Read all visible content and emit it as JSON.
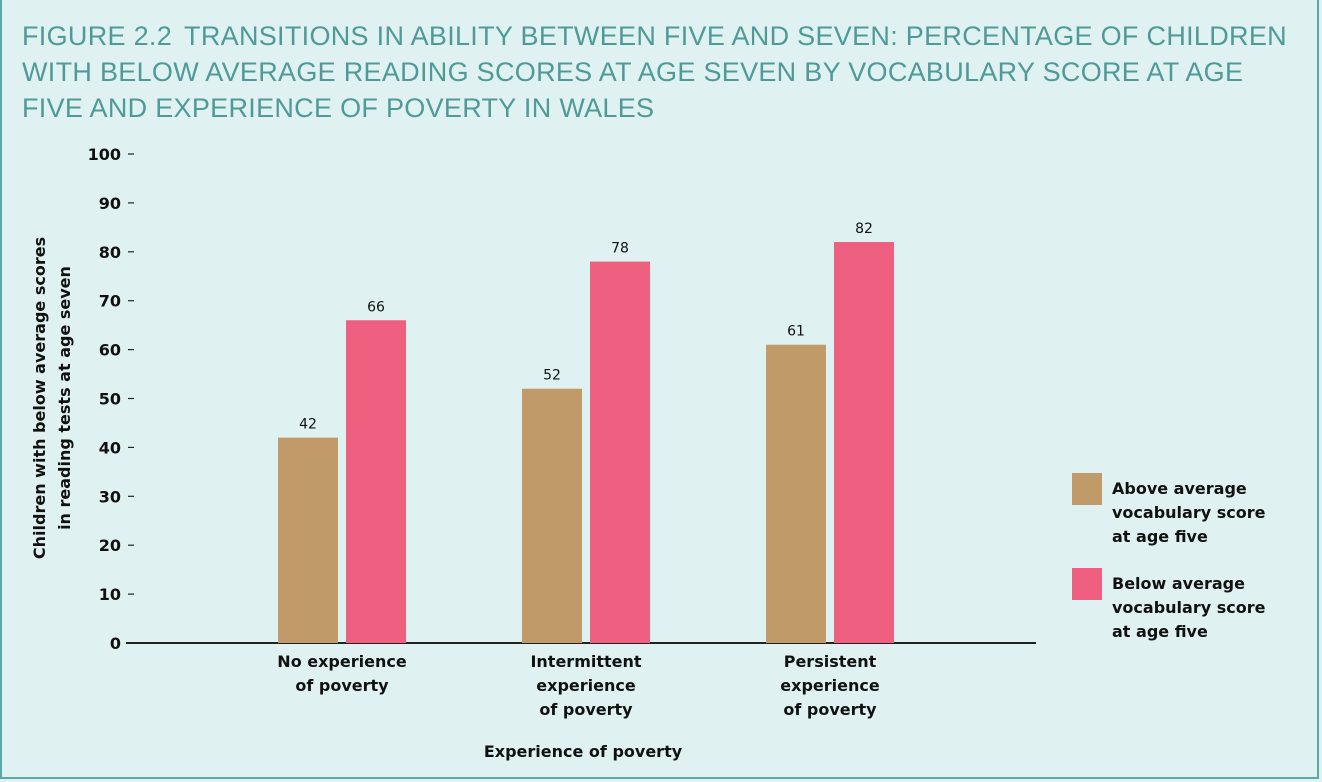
{
  "figure": {
    "number": "Figure 2.2",
    "title": "Transitions in ability between five and seven: percentage of children with below average reading scores at age seven by vocabulary score at age five and experience of poverty in Wales"
  },
  "chart_data": {
    "type": "bar",
    "categories": [
      [
        "No experience",
        "of poverty"
      ],
      [
        "Intermittent",
        "experience",
        "of poverty"
      ],
      [
        "Persistent",
        "experience",
        "of poverty"
      ]
    ],
    "series": [
      {
        "name": [
          "Above average",
          "vocabulary score",
          "at age five"
        ],
        "color": "#c09a68",
        "values": [
          42,
          52,
          61
        ]
      },
      {
        "name": [
          "Below average",
          "vocabulary score",
          "at age five"
        ],
        "color": "#ef5f80",
        "values": [
          66,
          78,
          82
        ]
      }
    ],
    "ylabel": [
      "Children with below average scores",
      "in reading tests at age seven"
    ],
    "xlabel": "Experience of poverty",
    "ylim": [
      0,
      100
    ],
    "yticks": [
      0,
      10,
      20,
      30,
      40,
      50,
      60,
      70,
      80,
      90,
      100
    ],
    "legend_position": "right",
    "grid": false
  }
}
